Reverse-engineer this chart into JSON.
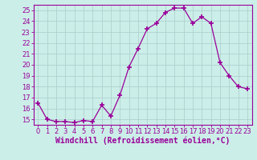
{
  "x": [
    0,
    1,
    2,
    3,
    4,
    5,
    6,
    7,
    8,
    9,
    10,
    11,
    12,
    13,
    14,
    15,
    16,
    17,
    18,
    19,
    20,
    21,
    22,
    23
  ],
  "y": [
    16.5,
    15.0,
    14.8,
    14.8,
    14.7,
    14.9,
    14.8,
    16.3,
    15.3,
    17.2,
    19.8,
    21.5,
    23.3,
    23.8,
    24.8,
    25.2,
    25.2,
    23.8,
    24.4,
    23.8,
    20.2,
    19.0,
    18.0,
    17.8
  ],
  "line_color": "#990099",
  "marker": "+",
  "marker_size": 4,
  "bg_color": "#cceee8",
  "grid_color": "#aacccc",
  "xlabel": "Windchill (Refroidissement éolien,°C)",
  "xlim": [
    -0.5,
    23.5
  ],
  "ylim": [
    14.5,
    25.5
  ],
  "yticks": [
    15,
    16,
    17,
    18,
    19,
    20,
    21,
    22,
    23,
    24,
    25
  ],
  "xticks": [
    0,
    1,
    2,
    3,
    4,
    5,
    6,
    7,
    8,
    9,
    10,
    11,
    12,
    13,
    14,
    15,
    16,
    17,
    18,
    19,
    20,
    21,
    22,
    23
  ],
  "tick_label_fontsize": 6,
  "xlabel_fontsize": 7
}
